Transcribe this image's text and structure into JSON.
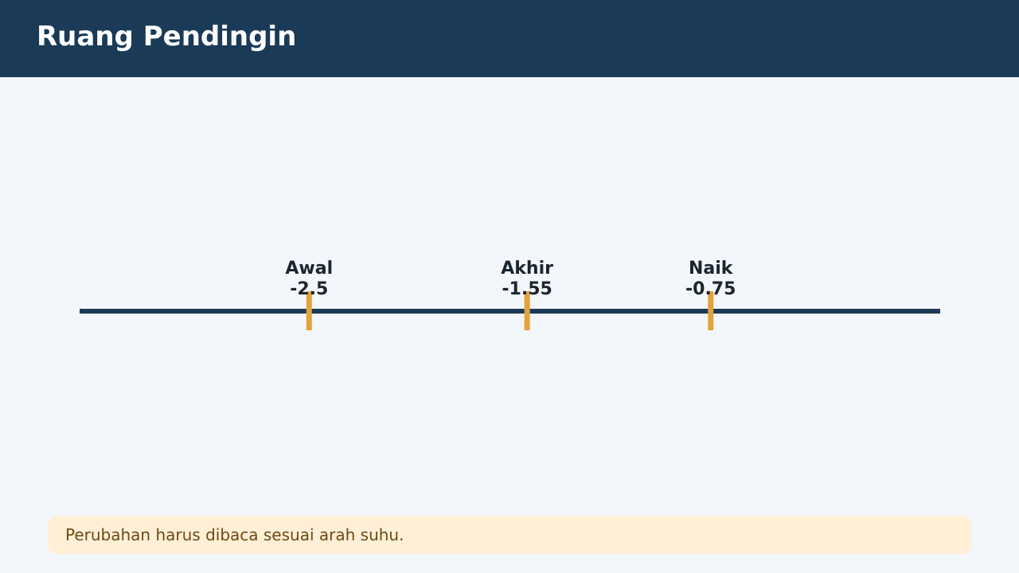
{
  "header": {
    "title": "Ruang Pendingin"
  },
  "number_line": {
    "xlim": [
      -3.5,
      0.25
    ],
    "markers": [
      {
        "label": "Awal",
        "value": -2.5
      },
      {
        "label": "Akhir",
        "value": -1.55
      },
      {
        "label": "Naik",
        "value": -0.75
      }
    ]
  },
  "note": "Perubahan harus dibaca sesuai arah suhu."
}
